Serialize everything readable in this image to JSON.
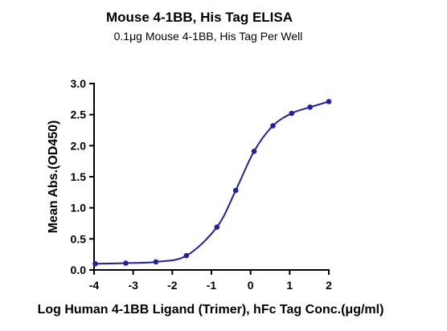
{
  "chart_data": {
    "type": "scatter",
    "title": "Mouse 4-1BB, His Tag ELISA",
    "subtitle": "0.1μg Mouse 4-1BB, His Tag Per Well",
    "xlabel": "Log Human 4-1BB Ligand (Trimer), hFc Tag Conc.(μg/ml)",
    "ylabel": "Mean Abs.(OD450)",
    "xlim": [
      -4,
      2
    ],
    "ylim": [
      0,
      3.0
    ],
    "x_ticks": [
      "-4",
      "-3",
      "-2",
      "-1",
      "0",
      "1",
      "2"
    ],
    "y_ticks": [
      "0.0",
      "0.5",
      "1.0",
      "1.5",
      "2.0",
      "2.5",
      "3.0"
    ],
    "grid": false,
    "series": [
      {
        "x": [
          -3.97,
          -3.19,
          -2.42,
          -1.64,
          -0.86,
          -0.38,
          0.09,
          0.57,
          1.05,
          1.52,
          2.0
        ],
        "y": [
          0.1,
          0.11,
          0.13,
          0.23,
          0.69,
          1.28,
          1.91,
          2.32,
          2.52,
          2.62,
          2.71
        ],
        "color": "#1f1fa8",
        "fit_curve": true
      }
    ]
  }
}
